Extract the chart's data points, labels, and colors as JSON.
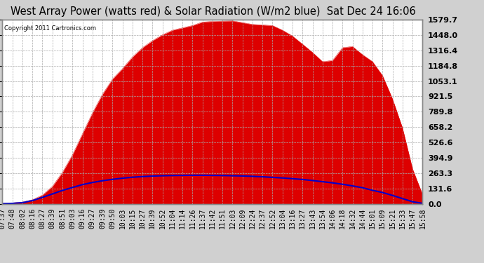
{
  "title": "West Array Power (watts red) & Solar Radiation (W/m2 blue)  Sat Dec 24 16:06",
  "copyright": "Copyright 2011 Cartronics.com",
  "bg_color": "#ffffff",
  "fig_bg": "#d0d0d0",
  "right_yticks": [
    0.0,
    131.6,
    263.3,
    394.9,
    526.6,
    658.2,
    789.8,
    921.5,
    1053.1,
    1184.8,
    1316.4,
    1448.0,
    1579.7
  ],
  "ymax": 1579.7,
  "x_labels": [
    "07:37",
    "07:48",
    "08:02",
    "08:16",
    "08:27",
    "08:39",
    "08:51",
    "09:03",
    "09:16",
    "09:27",
    "09:39",
    "09:50",
    "10:03",
    "10:15",
    "10:27",
    "10:39",
    "10:52",
    "11:04",
    "11:14",
    "11:26",
    "11:37",
    "11:42",
    "11:51",
    "12:03",
    "12:09",
    "12:24",
    "12:37",
    "12:52",
    "13:04",
    "13:16",
    "13:27",
    "13:43",
    "13:54",
    "14:06",
    "14:18",
    "14:32",
    "14:44",
    "15:01",
    "15:09",
    "15:21",
    "15:33",
    "15:47",
    "15:58"
  ],
  "power_values": [
    5,
    8,
    15,
    35,
    75,
    150,
    270,
    420,
    600,
    780,
    940,
    1070,
    1160,
    1260,
    1340,
    1400,
    1450,
    1490,
    1510,
    1530,
    1560,
    1565,
    1568,
    1570,
    1555,
    1540,
    1535,
    1530,
    1490,
    1440,
    1370,
    1300,
    1220,
    1230,
    1340,
    1350,
    1280,
    1220,
    1100,
    900,
    650,
    300,
    80
  ],
  "radiation_values": [
    2,
    4,
    10,
    28,
    55,
    85,
    115,
    140,
    165,
    183,
    198,
    210,
    220,
    228,
    234,
    238,
    241,
    243,
    244,
    245,
    245,
    244,
    243,
    241,
    239,
    236,
    232,
    227,
    222,
    216,
    209,
    200,
    190,
    180,
    168,
    154,
    138,
    116,
    97,
    72,
    45,
    18,
    4
  ],
  "grid_color": "#aaaaaa",
  "line_color_radiation": "#0000cc",
  "fill_color": "#dd0000",
  "title_fontsize": 10.5,
  "tick_fontsize": 7,
  "ytick_fontsize": 8
}
